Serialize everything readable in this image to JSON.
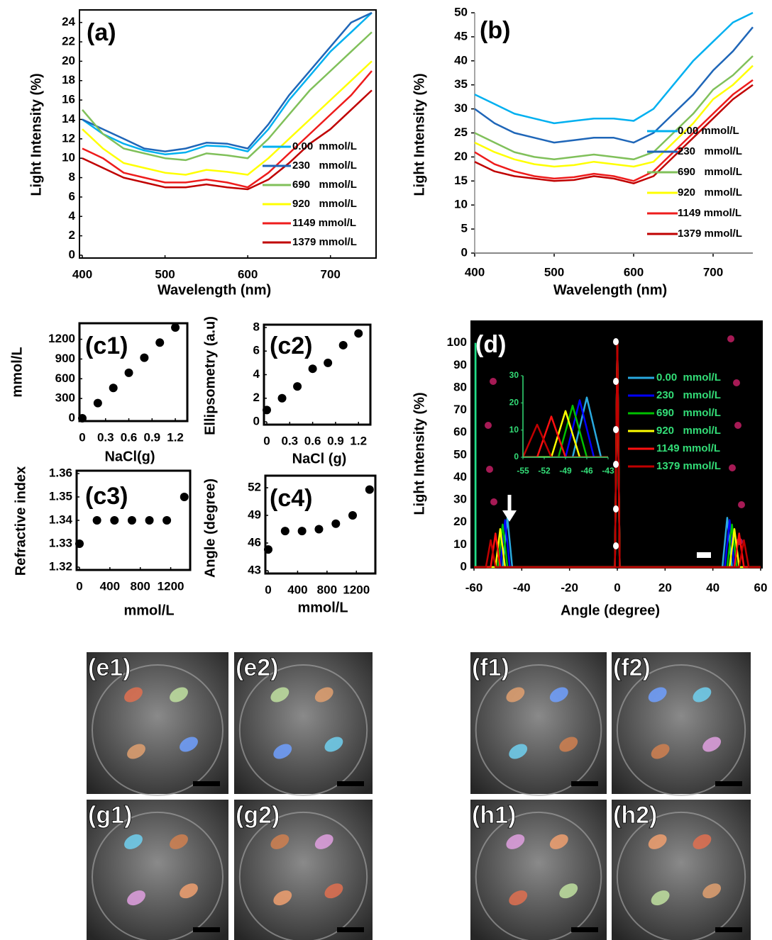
{
  "chart_data": [
    {
      "type": "line",
      "panel_label": "(a)",
      "x_label": "Wavelength (nm)",
      "y_label": "Light Intensity (%)",
      "x": [
        400,
        425,
        450,
        475,
        500,
        525,
        550,
        575,
        600,
        625,
        650,
        675,
        700,
        725,
        750
      ],
      "xlim": [
        400,
        750
      ],
      "ylim": [
        0,
        25
      ],
      "xticks": [
        400,
        500,
        600,
        700
      ],
      "yticks": [
        0,
        2,
        4,
        6,
        8,
        10,
        12,
        14,
        16,
        18,
        20,
        22,
        24
      ],
      "series": [
        {
          "name": "0.00  mmol/L",
          "color": "#00b0f0",
          "values": [
            14,
            12.5,
            11.5,
            10.8,
            10.4,
            10.6,
            11.3,
            11.2,
            10.7,
            13,
            16,
            18.5,
            21,
            23,
            25
          ]
        },
        {
          "name": "230   mmol/L",
          "color": "#1f66b8",
          "values": [
            14,
            13,
            12,
            11,
            10.7,
            11,
            11.6,
            11.5,
            11,
            13.5,
            16.5,
            19,
            21.5,
            24,
            25
          ]
        },
        {
          "name": "690   mmol/L",
          "color": "#80c05a",
          "values": [
            15,
            12.5,
            11,
            10.5,
            10,
            9.8,
            10.5,
            10.3,
            10,
            12,
            14.5,
            17,
            19,
            21,
            23
          ]
        },
        {
          "name": "920   mmol/L",
          "color": "#ffff00",
          "values": [
            13,
            11,
            9.5,
            9,
            8.5,
            8.3,
            8.8,
            8.6,
            8.3,
            10,
            12,
            14,
            16,
            18,
            20
          ]
        },
        {
          "name": "1149 mmol/L",
          "color": "#ee1c1c",
          "values": [
            11,
            10,
            8.5,
            8,
            7.5,
            7.5,
            7.8,
            7.5,
            7,
            8.5,
            10.5,
            12.5,
            14.5,
            16.5,
            19
          ]
        },
        {
          "name": "1379 mmol/L",
          "color": "#c00000",
          "values": [
            10,
            9,
            8,
            7.5,
            7,
            7,
            7.3,
            7,
            6.8,
            7.8,
            9.5,
            11.5,
            13,
            15,
            17
          ]
        }
      ]
    },
    {
      "type": "line",
      "panel_label": "(b)",
      "x_label": "Wavelength (nm)",
      "y_label": "Light Intensity (%)",
      "x": [
        400,
        425,
        450,
        475,
        500,
        525,
        550,
        575,
        600,
        625,
        650,
        675,
        700,
        725,
        750
      ],
      "xlim": [
        400,
        750
      ],
      "ylim": [
        0,
        50
      ],
      "xticks": [
        400,
        500,
        600,
        700
      ],
      "yticks": [
        0,
        5,
        10,
        15,
        20,
        25,
        30,
        35,
        40,
        45,
        50
      ],
      "series": [
        {
          "name": "0.00 mmol/L",
          "color": "#00b0f0",
          "values": [
            33,
            31,
            29,
            28,
            27,
            27.5,
            28,
            28,
            27.5,
            30,
            35,
            40,
            44,
            48,
            50
          ]
        },
        {
          "name": "230   mmol/L",
          "color": "#1f66b8",
          "values": [
            30,
            27,
            25,
            24,
            23,
            23.5,
            24,
            24,
            23,
            25,
            29,
            33,
            38,
            42,
            47
          ]
        },
        {
          "name": "690   mmol/L",
          "color": "#80c05a",
          "values": [
            25,
            23,
            21,
            20,
            19.5,
            20,
            20.5,
            20,
            19.5,
            21,
            25,
            29,
            34,
            37,
            41
          ]
        },
        {
          "name": "920   mmol/L",
          "color": "#ffff00",
          "values": [
            23,
            21,
            19.5,
            18.5,
            18,
            18.3,
            19,
            18.5,
            18,
            19,
            23,
            27,
            32,
            35,
            39
          ]
        },
        {
          "name": "1149 mmol/L",
          "color": "#ee1c1c",
          "values": [
            21,
            18.5,
            17,
            16,
            15.5,
            15.8,
            16.5,
            16,
            15,
            17,
            21,
            25,
            29,
            33,
            36
          ]
        },
        {
          "name": "1379 mmol/L",
          "color": "#c00000",
          "values": [
            19,
            17,
            16,
            15.5,
            15,
            15.2,
            16,
            15.5,
            14.5,
            16,
            20,
            24,
            28,
            32,
            35
          ]
        }
      ]
    },
    {
      "type": "scatter",
      "panel_label": "(c1)",
      "x_label": "NaCl(g)",
      "y_label": "mmol/L",
      "color": "#000000",
      "x": [
        0,
        0.2,
        0.4,
        0.6,
        0.8,
        1.0,
        1.2
      ],
      "values": [
        0,
        230,
        460,
        690,
        920,
        1149,
        1379
      ],
      "xlim": [
        0,
        1.3
      ],
      "ylim": [
        0,
        1400
      ],
      "xticks": [
        0,
        0.3,
        0.6,
        0.9,
        1.2
      ],
      "yticks": [
        0,
        300,
        600,
        900,
        1200
      ]
    },
    {
      "type": "scatter",
      "panel_label": "(c2)",
      "x_label": "NaCl (g)",
      "y_label": "Ellipsometry (a.u)",
      "color": "#000000",
      "x": [
        0,
        0.2,
        0.4,
        0.6,
        0.8,
        1.0,
        1.2
      ],
      "values": [
        1,
        2,
        3,
        4.5,
        5,
        6.5,
        7.5
      ],
      "xlim": [
        0,
        1.3
      ],
      "ylim": [
        0,
        8
      ],
      "xticks": [
        0,
        0.3,
        0.6,
        0.9,
        1.2
      ],
      "yticks": [
        0,
        2,
        4,
        6,
        8
      ]
    },
    {
      "type": "scatter",
      "panel_label": "(c3)",
      "x_label": "mmol/L",
      "y_label": "Refractive index",
      "color": "#000000",
      "x": [
        0,
        230,
        460,
        690,
        920,
        1149,
        1379
      ],
      "values": [
        1.33,
        1.34,
        1.34,
        1.34,
        1.34,
        1.34,
        1.35
      ],
      "xlim": [
        0,
        1400
      ],
      "ylim": [
        1.32,
        1.36
      ],
      "xticks": [
        0,
        400,
        800,
        1200
      ],
      "yticks": [
        1.32,
        1.33,
        1.34,
        1.35,
        1.36
      ]
    },
    {
      "type": "scatter",
      "panel_label": "(c4)",
      "x_label": "mmol/L",
      "y_label": "Angle (degree)",
      "color": "#000000",
      "x": [
        0,
        230,
        460,
        690,
        920,
        1149,
        1379
      ],
      "values": [
        45.3,
        47.3,
        47.3,
        47.5,
        48.1,
        49,
        51.8
      ],
      "xlim": [
        0,
        1400
      ],
      "ylim": [
        43,
        53
      ],
      "xticks": [
        0,
        400,
        800,
        1200
      ],
      "yticks": [
        43,
        46,
        49,
        52
      ]
    },
    {
      "type": "peaks",
      "panel_label": "(d)",
      "x_label": "Angle (degree)",
      "y_label": "Light Intensity (%)",
      "xlim": [
        -60,
        60
      ],
      "ylim": [
        0,
        110
      ],
      "xticks": [
        -60,
        -40,
        -20,
        0,
        20,
        40,
        60
      ],
      "yticks": [
        0,
        10,
        20,
        30,
        40,
        50,
        60,
        70,
        80,
        90,
        100
      ],
      "series": [
        {
          "name": "0.00  mmol/L",
          "color": "#29a9e0",
          "x": [
            -60,
            -48,
            -46,
            -44,
            -1,
            0,
            1,
            44,
            46,
            48,
            60
          ],
          "values": [
            0,
            0,
            22,
            0,
            0,
            100,
            0,
            0,
            22,
            0,
            0
          ]
        },
        {
          "name": "230   mmol/L",
          "color": "#0000ff",
          "x": [
            -60,
            -49,
            -47,
            -45,
            -1,
            0,
            1,
            45,
            47,
            49,
            60
          ],
          "values": [
            0,
            0,
            21,
            0,
            0,
            100,
            0,
            0,
            21,
            0,
            0
          ]
        },
        {
          "name": "690   mmol/L",
          "color": "#00c000",
          "x": [
            -60,
            -50,
            -48,
            -46,
            -1,
            0,
            1,
            46,
            48,
            50,
            60
          ],
          "values": [
            0,
            0,
            19,
            0,
            0,
            100,
            0,
            0,
            19,
            0,
            0
          ]
        },
        {
          "name": "920   mmol/L",
          "color": "#ffff00",
          "x": [
            -60,
            -51,
            -49,
            -47,
            -1,
            0,
            1,
            47,
            49,
            51,
            60
          ],
          "values": [
            0,
            0,
            17,
            0,
            0,
            100,
            0,
            0,
            17,
            0,
            0
          ]
        },
        {
          "name": "1149 mmol/L",
          "color": "#ff1010",
          "x": [
            -60,
            -53,
            -51,
            -49,
            -1,
            0,
            1,
            49,
            51,
            53,
            60
          ],
          "values": [
            0,
            0,
            15,
            0,
            0,
            100,
            0,
            0,
            15,
            0,
            0
          ]
        },
        {
          "name": "1379 mmol/L",
          "color": "#c00000",
          "x": [
            -60,
            -55,
            -53,
            -51,
            -1,
            0,
            1,
            51,
            53,
            55,
            60
          ],
          "values": [
            0,
            0,
            12,
            0,
            0,
            100,
            0,
            0,
            12,
            0,
            0
          ]
        }
      ],
      "inset": {
        "xlim": [
          -55,
          -43
        ],
        "ylim": [
          0,
          30
        ],
        "xticks": [
          -55,
          -52,
          -49,
          -46,
          -43
        ],
        "yticks": [
          0,
          10,
          20,
          30
        ]
      }
    }
  ],
  "photos": [
    "(e1)",
    "(e2)",
    "(f1)",
    "(f2)",
    "(g1)",
    "(g2)",
    "(h1)",
    "(h2)"
  ]
}
